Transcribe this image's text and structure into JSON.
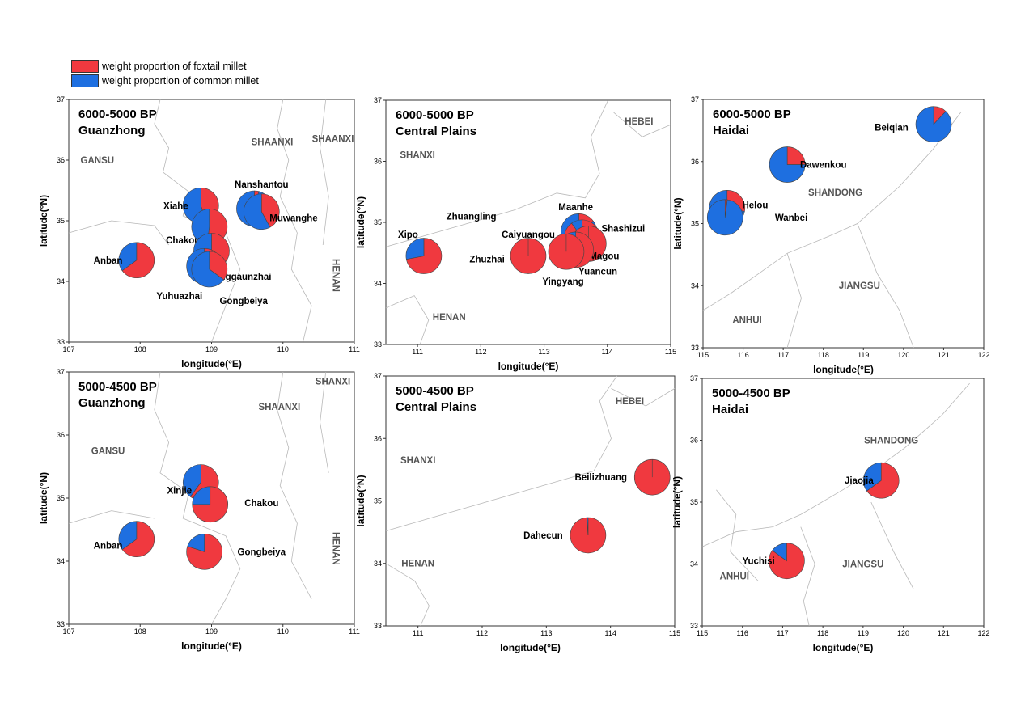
{
  "legend": {
    "items": [
      {
        "label": "weight proportion of foxtail millet",
        "color": "#f0393f"
      },
      {
        "label": "weight proportion of common millet",
        "color": "#1e6fe0"
      }
    ]
  },
  "colors": {
    "foxtail": "#f0393f",
    "common": "#1e6fe0"
  },
  "panels": [
    {
      "title": [
        "6000-5000 BP",
        "Guanzhong"
      ],
      "xlabel": "longitude(°E)",
      "ylabel": "latitude(°N)",
      "xlim": [
        107,
        111
      ],
      "ylim": [
        33,
        37
      ],
      "xticks": [
        107,
        108,
        109,
        110,
        111
      ],
      "yticks": [
        33,
        34,
        35,
        36,
        37
      ],
      "regions": [
        {
          "label": "GANSU",
          "x": 107.4,
          "y": 35.95
        },
        {
          "label": "SHAANXI",
          "x": 109.85,
          "y": 36.25
        },
        {
          "label": "SHAANXI",
          "x": 110.7,
          "y": 36.3
        },
        {
          "label": "HENAN",
          "x": 110.7,
          "y": 34.1,
          "rotate": 90
        }
      ],
      "sites": [
        {
          "name": "Nanshantou",
          "x": 109.6,
          "y": 35.2,
          "foxtail": 0.04,
          "label_x": 109.7,
          "label_y": 35.6
        },
        {
          "name": "Muwanghe",
          "x": 109.7,
          "y": 35.15,
          "foxtail": 0.42,
          "label_x": 110.15,
          "label_y": 35.05
        },
        {
          "name": "Xiahe",
          "x": 108.85,
          "y": 35.25,
          "foxtail": 0.45,
          "label_x": 108.5,
          "label_y": 35.25
        },
        {
          "name": "Chakou",
          "x": 108.97,
          "y": 34.9,
          "foxtail": 0.52,
          "label_x": 108.6,
          "label_y": 34.68
        },
        {
          "name": "Yanggaunzhai",
          "x": 109.0,
          "y": 34.5,
          "foxtail": 0.72,
          "label_x": 109.4,
          "label_y": 34.08
        },
        {
          "name": "Yuhuazhai",
          "x": 108.9,
          "y": 34.25,
          "foxtail": 0.45,
          "label_x": 108.55,
          "label_y": 33.76
        },
        {
          "name": "Gongbeiya",
          "x": 108.97,
          "y": 34.2,
          "foxtail": 0.35,
          "label_x": 109.45,
          "label_y": 33.68
        },
        {
          "name": "Anban",
          "x": 107.95,
          "y": 34.35,
          "foxtail": 0.65,
          "label_x": 107.55,
          "label_y": 34.35
        }
      ]
    },
    {
      "title": [
        "6000-5000 BP",
        "Central Plains"
      ],
      "xlabel": "longitude(°E)",
      "ylabel": "latitude(°N)",
      "xlim": [
        110.5,
        115
      ],
      "ylim": [
        33,
        37
      ],
      "xticks": [
        111,
        112,
        113,
        114,
        115
      ],
      "yticks": [
        33,
        34,
        35,
        36,
        37
      ],
      "regions": [
        {
          "label": "HEBEI",
          "x": 114.5,
          "y": 36.6
        },
        {
          "label": "SHANXI",
          "x": 111.0,
          "y": 36.05
        },
        {
          "label": "HENAN",
          "x": 111.5,
          "y": 33.4
        }
      ],
      "sites": [
        {
          "name": "Xipo",
          "x": 111.1,
          "y": 34.45,
          "foxtail": 0.72,
          "label_x": 110.85,
          "label_y": 34.8
        },
        {
          "name": "Zhuangling",
          "x": 111.85,
          "y": 35.1,
          "foxtail": null,
          "label_x": 111.85,
          "label_y": 35.1
        },
        {
          "name": "Caiyuangou",
          "x": 112.75,
          "y": 34.45,
          "foxtail": 1.0,
          "label_x": 112.75,
          "label_y": 34.8
        },
        {
          "name": "Zhuzhai",
          "x": 112.75,
          "y": 34.45,
          "foxtail": null,
          "label_x": 112.1,
          "label_y": 34.4
        },
        {
          "name": "Maanhe",
          "x": 113.55,
          "y": 34.85,
          "foxtail": 0.15,
          "label_x": 113.5,
          "label_y": 35.25
        },
        {
          "name": "Shashizui",
          "x": 113.6,
          "y": 34.75,
          "foxtail": 0.9,
          "label_x": 114.25,
          "label_y": 34.9
        },
        {
          "name": "Magou",
          "x": 113.7,
          "y": 34.65,
          "foxtail": 1.0,
          "label_x": 113.95,
          "label_y": 34.45
        },
        {
          "name": "Yuancun",
          "x": 113.5,
          "y": 34.55,
          "foxtail": 0.9,
          "label_x": 113.85,
          "label_y": 34.2
        },
        {
          "name": "Yingyang",
          "x": 113.35,
          "y": 34.52,
          "foxtail": 1.0,
          "label_x": 113.3,
          "label_y": 34.03
        }
      ]
    },
    {
      "title": [
        "6000-5000 BP",
        "Haidai"
      ],
      "xlabel": "longitude(°E)",
      "ylabel": "latitude(°N)",
      "xlim": [
        115,
        122
      ],
      "ylim": [
        33,
        37
      ],
      "xticks": [
        115,
        116,
        117,
        118,
        119,
        120,
        121,
        122
      ],
      "yticks": [
        33,
        34,
        35,
        36,
        37
      ],
      "regions": [
        {
          "label": "SHANDONG",
          "x": 118.3,
          "y": 35.45
        },
        {
          "label": "JIANGSU",
          "x": 118.9,
          "y": 33.95
        },
        {
          "label": "ANHUI",
          "x": 116.1,
          "y": 33.4
        }
      ],
      "sites": [
        {
          "name": "Beiqian",
          "x": 120.75,
          "y": 36.6,
          "foxtail": 0.12,
          "label_x": 119.7,
          "label_y": 36.55
        },
        {
          "name": "Dawenkou",
          "x": 117.1,
          "y": 35.95,
          "foxtail": 0.25,
          "label_x": 118.0,
          "label_y": 35.95
        },
        {
          "name": "Helou",
          "x": 115.6,
          "y": 35.25,
          "foxtail": 0.28,
          "label_x": 116.3,
          "label_y": 35.3
        },
        {
          "name": "Wanbei",
          "x": 115.55,
          "y": 35.1,
          "foxtail": 0.02,
          "label_x": 117.2,
          "label_y": 35.1
        }
      ]
    },
    {
      "title": [
        "5000-4500 BP",
        "Guanzhong"
      ],
      "xlabel": "longitude(°E)",
      "ylabel": "latitude(°N)",
      "xlim": [
        107,
        111
      ],
      "ylim": [
        33,
        37
      ],
      "xticks": [
        107,
        108,
        109,
        110,
        111
      ],
      "yticks": [
        33,
        34,
        35,
        36,
        37
      ],
      "regions": [
        {
          "label": "GANSU",
          "x": 107.55,
          "y": 35.7
        },
        {
          "label": "SHAANXI",
          "x": 109.95,
          "y": 36.4
        },
        {
          "label": "SHANXI",
          "x": 110.7,
          "y": 36.8
        },
        {
          "label": "HENAN",
          "x": 110.7,
          "y": 34.2,
          "rotate": 90
        }
      ],
      "sites": [
        {
          "name": "Xinjie",
          "x": 108.85,
          "y": 35.25,
          "foxtail": 0.6,
          "label_x": 108.55,
          "label_y": 35.12
        },
        {
          "name": "Chakou",
          "x": 108.98,
          "y": 34.9,
          "foxtail": 0.75,
          "label_x": 109.7,
          "label_y": 34.92
        },
        {
          "name": "Anban",
          "x": 107.95,
          "y": 34.35,
          "foxtail": 0.65,
          "label_x": 107.55,
          "label_y": 34.25
        },
        {
          "name": "Gongbeiya",
          "x": 108.9,
          "y": 34.15,
          "foxtail": 0.8,
          "label_x": 109.7,
          "label_y": 34.15
        }
      ]
    },
    {
      "title": [
        "5000-4500 BP",
        "Central Plains"
      ],
      "xlabel": "longitude(°E)",
      "ylabel": "latitude(°N)",
      "xlim": [
        110.5,
        115
      ],
      "ylim": [
        33,
        37
      ],
      "xticks": [
        111,
        112,
        113,
        114,
        115
      ],
      "yticks": [
        33,
        34,
        35,
        36,
        37
      ],
      "regions": [
        {
          "label": "HEBEI",
          "x": 114.3,
          "y": 36.55
        },
        {
          "label": "SHANXI",
          "x": 111.0,
          "y": 35.6
        },
        {
          "label": "HENAN",
          "x": 111.0,
          "y": 33.95
        }
      ],
      "sites": [
        {
          "name": "Beilizhuang",
          "x": 114.65,
          "y": 35.38,
          "foxtail": 1.0,
          "label_x": 113.85,
          "label_y": 35.38
        },
        {
          "name": "Dahecun",
          "x": 113.65,
          "y": 34.45,
          "foxtail": 0.99,
          "label_x": 112.95,
          "label_y": 34.45
        }
      ]
    },
    {
      "title": [
        "5000-4500 BP",
        "Haidai"
      ],
      "xlabel": "longitude(°E)",
      "ylabel": "latitude(°N)",
      "xlim": [
        115,
        122
      ],
      "ylim": [
        33,
        37
      ],
      "xticks": [
        115,
        116,
        117,
        118,
        119,
        120,
        121,
        122
      ],
      "yticks": [
        33,
        34,
        35,
        36,
        37
      ],
      "regions": [
        {
          "label": "SHANDONG",
          "x": 119.7,
          "y": 35.95
        },
        {
          "label": "JIANGSU",
          "x": 119.0,
          "y": 33.95
        },
        {
          "label": "ANHUI",
          "x": 115.8,
          "y": 33.75
        }
      ],
      "sites": [
        {
          "name": "Jiaojia",
          "x": 119.45,
          "y": 35.35,
          "foxtail": 0.65,
          "label_x": 118.9,
          "label_y": 35.35
        },
        {
          "name": "Yuchisi",
          "x": 117.1,
          "y": 34.05,
          "foxtail": 0.85,
          "label_x": 116.4,
          "label_y": 34.05
        }
      ]
    }
  ]
}
